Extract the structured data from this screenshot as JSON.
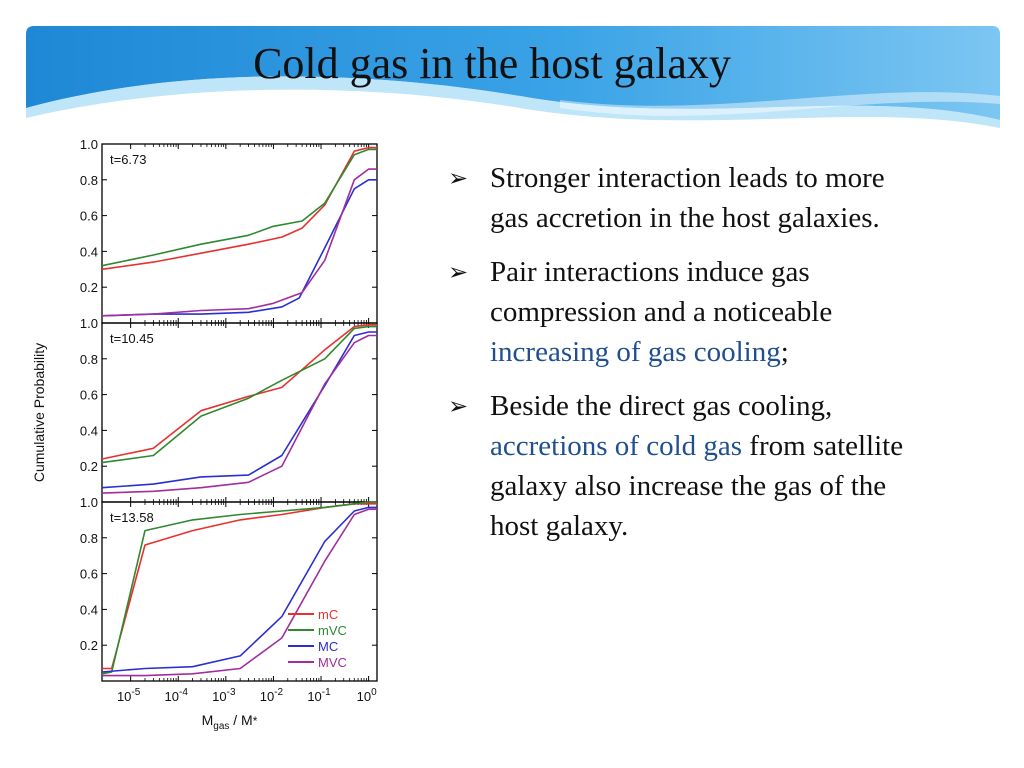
{
  "slide": {
    "title": "Cold gas in the host galaxy",
    "bullets": [
      {
        "parts": [
          {
            "text": "Stronger interaction leads to more gas accretion in the host galaxies.",
            "hl": false
          }
        ]
      },
      {
        "parts": [
          {
            "text": "Pair interactions induce gas compression and a noticeable ",
            "hl": false
          },
          {
            "text": "increasing of gas cooling",
            "hl": true
          },
          {
            "text": ";",
            "hl": false
          }
        ]
      },
      {
        "parts": [
          {
            "text": "Beside the direct gas cooling, ",
            "hl": false
          },
          {
            "text": "accretions of cold gas",
            "hl": true
          },
          {
            "text": " from satellite galaxy also increase the gas of the host galaxy.",
            "hl": false
          }
        ]
      }
    ],
    "colors": {
      "highlight": "#1f4f8f",
      "banner_dark": "#1f88d6",
      "banner_light": "#8fd0f5"
    }
  },
  "chart_data": {
    "type": "line",
    "xscale": "log",
    "xlim": [
      2.5e-06,
      1.5
    ],
    "ylim": [
      0.0,
      1.0
    ],
    "xticks": [
      1e-05,
      0.0001,
      0.001,
      0.01,
      0.1,
      1
    ],
    "xtick_labels": [
      {
        "base": "10",
        "exp": "-5"
      },
      {
        "base": "10",
        "exp": "-4"
      },
      {
        "base": "10",
        "exp": "-3"
      },
      {
        "base": "10",
        "exp": "-2"
      },
      {
        "base": "10",
        "exp": "-1"
      },
      {
        "base": "10",
        "exp": "0"
      }
    ],
    "yticks": [
      0.2,
      0.4,
      0.6,
      0.8,
      1.0
    ],
    "ytick_labels": [
      "0.2",
      "0.4",
      "0.6",
      "0.8",
      "1.0"
    ],
    "ylabel": "Cumulative Probability",
    "xlabel": {
      "main": "M",
      "sub": "gas",
      "rest": " / M",
      "tail": "*"
    },
    "legend": {
      "placement": "bottom-right of bottom panel",
      "entries": [
        "mC",
        "mVC",
        "MC",
        "MVC"
      ]
    },
    "series_colors": {
      "mC": "#e8312f",
      "mVC": "#2f8a2f",
      "MC": "#2a2fcf",
      "MVC": "#a02ea0"
    },
    "panels": [
      {
        "label": "t=6.73",
        "series": [
          {
            "name": "mC",
            "x": [
              2.5e-06,
              3e-05,
              0.0003,
              0.003,
              0.015,
              0.04,
              0.12,
              0.5,
              1.0,
              1.5
            ],
            "y": [
              0.3,
              0.34,
              0.39,
              0.44,
              0.48,
              0.53,
              0.66,
              0.96,
              0.98,
              0.98
            ]
          },
          {
            "name": "mVC",
            "x": [
              2.5e-06,
              3e-05,
              0.0003,
              0.003,
              0.01,
              0.04,
              0.12,
              0.5,
              1.0,
              1.5
            ],
            "y": [
              0.32,
              0.38,
              0.44,
              0.49,
              0.54,
              0.57,
              0.67,
              0.94,
              0.97,
              0.97
            ]
          },
          {
            "name": "MC",
            "x": [
              2.5e-06,
              3e-05,
              0.0003,
              0.003,
              0.015,
              0.035,
              0.12,
              0.5,
              1.0,
              1.5
            ],
            "y": [
              0.04,
              0.05,
              0.05,
              0.06,
              0.09,
              0.14,
              0.42,
              0.75,
              0.8,
              0.8
            ]
          },
          {
            "name": "MVC",
            "x": [
              2.5e-06,
              3e-05,
              0.0003,
              0.003,
              0.01,
              0.04,
              0.12,
              0.5,
              1.0,
              1.5
            ],
            "y": [
              0.04,
              0.05,
              0.07,
              0.08,
              0.11,
              0.17,
              0.35,
              0.8,
              0.86,
              0.86
            ]
          }
        ]
      },
      {
        "label": "t=10.45",
        "series": [
          {
            "name": "mC",
            "x": [
              2.5e-06,
              3e-05,
              0.0003,
              0.003,
              0.015,
              0.12,
              0.5,
              1.0,
              1.5
            ],
            "y": [
              0.24,
              0.3,
              0.51,
              0.59,
              0.64,
              0.85,
              0.98,
              0.99,
              0.99
            ]
          },
          {
            "name": "mVC",
            "x": [
              2.5e-06,
              3e-05,
              0.0003,
              0.003,
              0.015,
              0.12,
              0.5,
              1.0,
              1.5
            ],
            "y": [
              0.22,
              0.26,
              0.48,
              0.58,
              0.68,
              0.8,
              0.97,
              0.98,
              0.98
            ]
          },
          {
            "name": "MC",
            "x": [
              2.5e-06,
              3e-05,
              0.0003,
              0.003,
              0.015,
              0.12,
              0.5,
              1.0,
              1.5
            ],
            "y": [
              0.08,
              0.1,
              0.14,
              0.15,
              0.26,
              0.65,
              0.93,
              0.95,
              0.95
            ]
          },
          {
            "name": "MVC",
            "x": [
              2.5e-06,
              3e-05,
              0.0003,
              0.003,
              0.015,
              0.12,
              0.5,
              1.0,
              1.5
            ],
            "y": [
              0.05,
              0.06,
              0.08,
              0.11,
              0.2,
              0.66,
              0.89,
              0.93,
              0.93
            ]
          }
        ]
      },
      {
        "label": "t=13.58",
        "series": [
          {
            "name": "mC",
            "x": [
              2.5e-06,
              4e-06,
              2e-05,
              0.0002,
              0.002,
              0.015,
              0.12,
              0.5,
              1.0,
              1.5
            ],
            "y": [
              0.07,
              0.07,
              0.76,
              0.84,
              0.9,
              0.93,
              0.97,
              0.99,
              0.99,
              0.99
            ]
          },
          {
            "name": "mVC",
            "x": [
              2.5e-06,
              4e-06,
              2e-05,
              0.0002,
              0.002,
              0.015,
              0.12,
              0.5,
              1.0,
              1.5
            ],
            "y": [
              0.04,
              0.05,
              0.84,
              0.9,
              0.93,
              0.95,
              0.97,
              0.99,
              1.0,
              1.0
            ]
          },
          {
            "name": "MC",
            "x": [
              2.5e-06,
              2e-05,
              0.0002,
              0.002,
              0.015,
              0.12,
              0.5,
              1.0,
              1.5
            ],
            "y": [
              0.05,
              0.07,
              0.08,
              0.14,
              0.36,
              0.78,
              0.95,
              0.97,
              0.97
            ]
          },
          {
            "name": "MVC",
            "x": [
              2.5e-06,
              2e-05,
              0.0002,
              0.002,
              0.015,
              0.12,
              0.5,
              1.0,
              1.5
            ],
            "y": [
              0.03,
              0.03,
              0.04,
              0.07,
              0.24,
              0.67,
              0.93,
              0.96,
              0.96
            ]
          }
        ]
      }
    ]
  }
}
